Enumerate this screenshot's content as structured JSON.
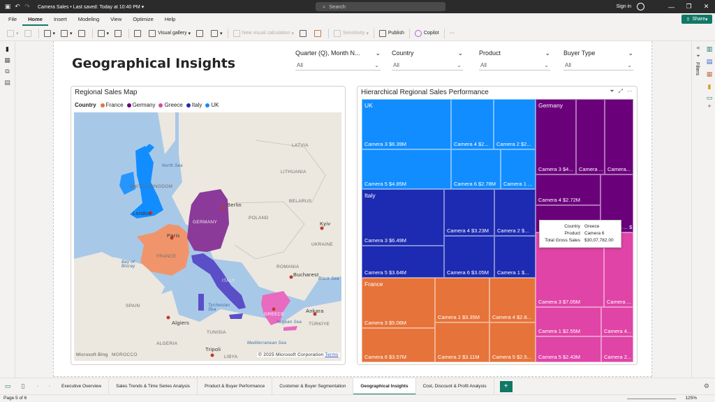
{
  "titlebar": {
    "file_name": "Camera Sales",
    "save_status": "Last saved: Today at 10:40 PM",
    "search_placeholder": "Search",
    "signin": "Sign in"
  },
  "menu": [
    "File",
    "Home",
    "Insert",
    "Modeling",
    "View",
    "Optimize",
    "Help"
  ],
  "share_label": "Share",
  "ribbon": {
    "visual_gallery": "Visual gallery",
    "new_visual_calc": "New visual calculation",
    "sensitivity": "Sensitivity",
    "publish": "Publish",
    "copilot": "Copilot"
  },
  "filters_label": "Filters",
  "page_title": "Geographical Insights",
  "slicers": [
    {
      "label": "Quarter (Q), Month N...",
      "value": "All"
    },
    {
      "label": "Country",
      "value": "All"
    },
    {
      "label": "Product",
      "value": "All"
    },
    {
      "label": "Buyer Type",
      "value": "All"
    }
  ],
  "map_visual": {
    "title": "Regional Sales Map",
    "legend_title": "Country",
    "legend": [
      {
        "name": "France",
        "color": "#e6733a"
      },
      {
        "name": "Germany",
        "color": "#6b007b"
      },
      {
        "name": "Greece",
        "color": "#e044a7"
      },
      {
        "name": "Italy",
        "color": "#1c2bb1"
      },
      {
        "name": "UK",
        "color": "#118dff"
      }
    ],
    "labels": {
      "north_sea": "North Sea",
      "united_kingdom": "UNITED KINGDOM",
      "london": "London",
      "paris": "Paris",
      "france": "FRANCE",
      "bay_of_biscay": "Bay of Biscay",
      "spain": "SPAIN",
      "germany": "GERMANY",
      "berlin": "Berlin",
      "poland": "POLAND",
      "belarus": "BELARUS",
      "kyiv": "Kyiv",
      "ukraine": "UKRAINE",
      "romania": "ROMANIA",
      "bucharest": "Bucharest",
      "black_sea": "Black Sea",
      "italy": "ITALY",
      "tyrrhenian_sea": "Tyrrhenian Sea",
      "algiers": "Algiers",
      "algeria": "ALGERIA",
      "morocco": "MOROCCO",
      "tunisia": "TUNISIA",
      "tripoli": "Tripoli",
      "libya": "LIBYA",
      "mediterranean_sea": "Mediterranean Sea",
      "aegean_sea": "Aegean Sea",
      "ankara": "Ankara",
      "turkiye": "TÜRKİYE",
      "greece": "GREECE",
      "latvia": "LATVIA",
      "lithuania": "LITHUANIA",
      "copyright": "© 2025 Microsoft Corporation",
      "terms": "Terms",
      "bing": "Microsoft Bing"
    }
  },
  "treemap": {
    "title": "Hierarchical Regional Sales Performance",
    "groups": [
      {
        "name": "UK",
        "color": "#118dff",
        "cells": [
          {
            "label": "Camera 3 $6.39M"
          },
          {
            "label": "Camera 4 $2..."
          },
          {
            "label": "Camera 2 $2..."
          },
          {
            "label": "Camera 5 $4.85M"
          },
          {
            "label": "Camera 6 $2.78M"
          },
          {
            "label": "Camera 1 ..."
          }
        ]
      },
      {
        "name": "Germany",
        "color": "#6b007b",
        "cells": [
          {
            "label": "Camera 3 $4..."
          },
          {
            "label": "Camera ..."
          },
          {
            "label": "Camera..."
          },
          {
            "label": "Camera 4 $2.72M"
          },
          {
            "label": "Camera ... $..."
          }
        ]
      },
      {
        "name": "Italy",
        "color": "#1c2bb1",
        "cells": [
          {
            "label": "Camera 3 $6.49M"
          },
          {
            "label": "Camera 4 $3.23M"
          },
          {
            "label": "Camera 2 $..."
          },
          {
            "label": "Camera 5 $3.64M"
          },
          {
            "label": "Camera 6 $3.05M"
          },
          {
            "label": "Camera 1 $..."
          }
        ]
      },
      {
        "name": "Greece",
        "color": "#e044a7",
        "cells": [
          {
            "label": "Camera 3 $7.05M"
          },
          {
            "label": "Camera ..."
          },
          {
            "label": "Camera 1 $2.55M"
          },
          {
            "label": "Camera 4..."
          },
          {
            "label": "Camera 5 $2.43M"
          },
          {
            "label": "Camera 2..."
          }
        ]
      },
      {
        "name": "France",
        "color": "#e6733a",
        "cells": [
          {
            "label": "Camera 3 $5.06M"
          },
          {
            "label": "Camera 1 $3.35M"
          },
          {
            "label": "Camera 4 $2.8..."
          },
          {
            "label": "Camera 6 $3.57M"
          },
          {
            "label": "Camera 2 $3.11M"
          },
          {
            "label": "Camera 5 $2.5..."
          }
        ]
      }
    ]
  },
  "tooltip": {
    "rows": [
      {
        "key": "Country",
        "value": "Greece"
      },
      {
        "key": "Product",
        "value": "Camera 6"
      },
      {
        "key": "Total Gross Sales",
        "value": "$30,07,782.00"
      }
    ]
  },
  "tabs": [
    "Executive Overview",
    "Sales Trends & Time Series Analysis",
    "Product & Buyer Performance",
    "Customer & Buyer Segmentation",
    "Geographical Insights",
    "Cost, Discount & Profit Analysis"
  ],
  "active_tab": "Geographical Insights",
  "status": {
    "page": "Page 5 of 6",
    "zoom": "125%"
  }
}
